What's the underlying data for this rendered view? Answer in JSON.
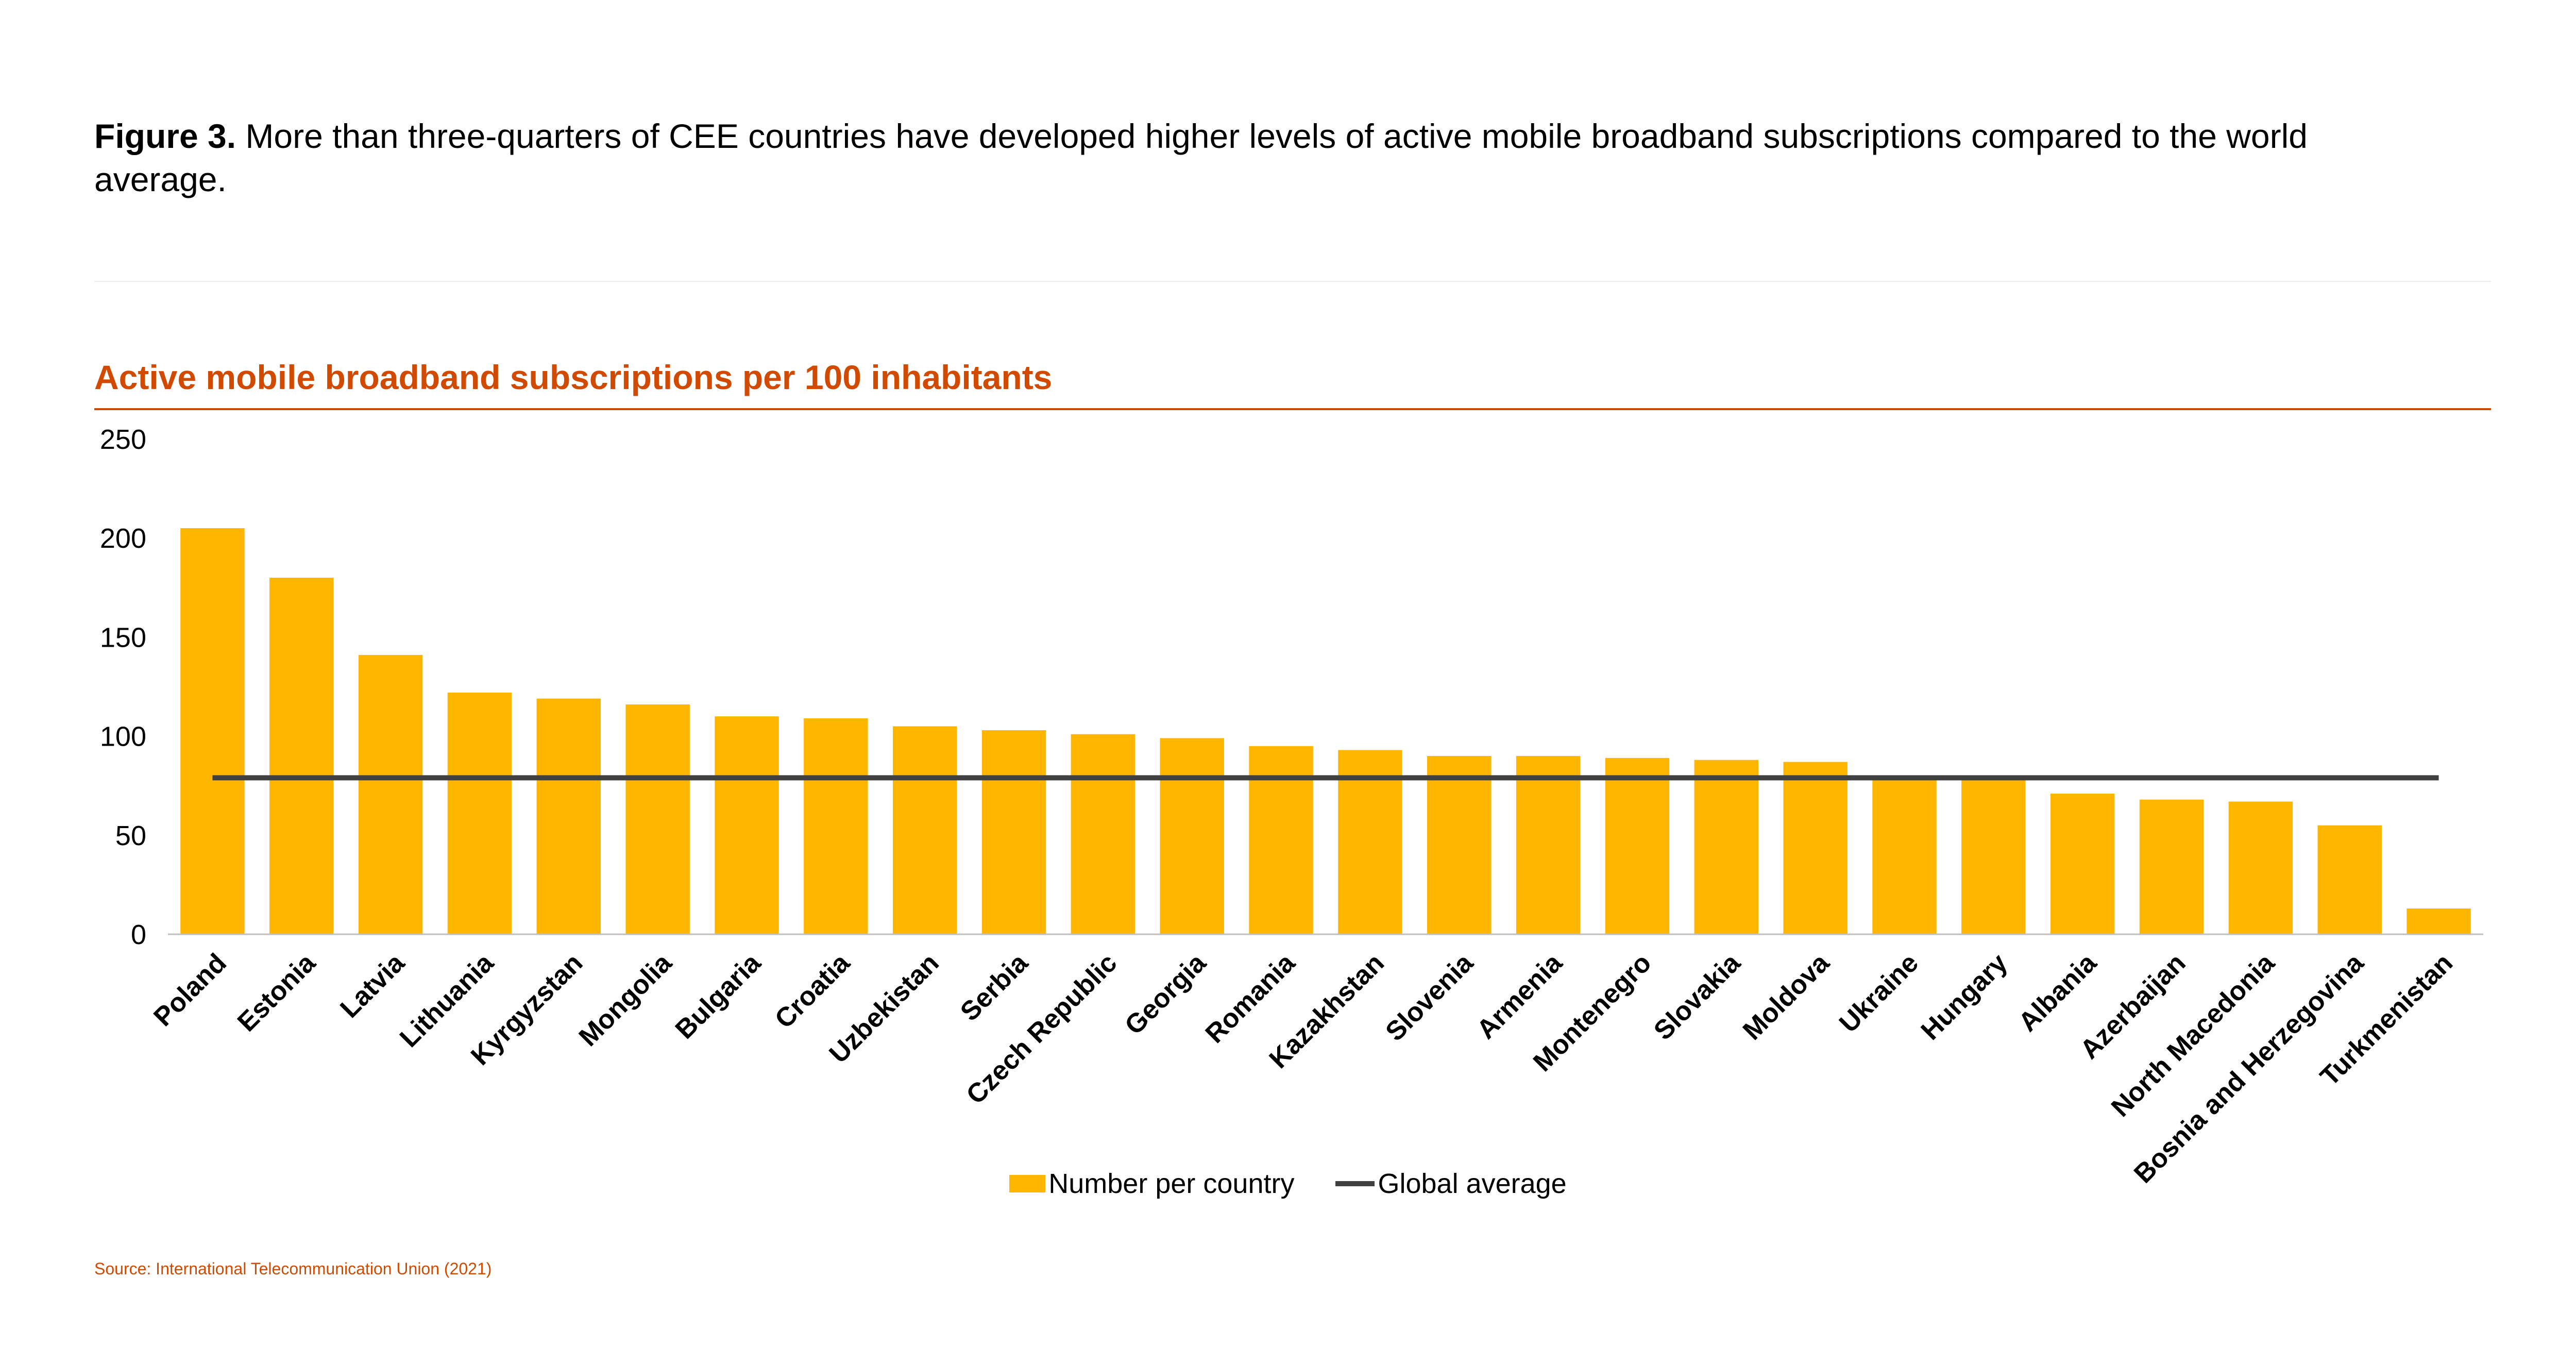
{
  "caption": {
    "label": "Figure 3.",
    "text": " More than three-quarters of CEE countries have developed higher levels of active mobile broadband subscriptions compared to the world average."
  },
  "source": "Source: International Telecommunication Union (2021)",
  "colors": {
    "bar": "#ffb600",
    "average_line": "#404040",
    "accent": "#d04a02"
  },
  "chart_data": {
    "type": "bar",
    "title": "Active mobile broadband subscriptions per 100 inhabitants",
    "xlabel": "",
    "ylabel": "",
    "ylim": [
      0,
      250
    ],
    "yticks": [
      0,
      50,
      100,
      150,
      200,
      250
    ],
    "grid": false,
    "legend_position": "bottom",
    "categories": [
      "Poland",
      "Estonia",
      "Latvia",
      "Lithuania",
      "Kyrgyzstan",
      "Mongolia",
      "Bulgaria",
      "Croatia",
      "Uzbekistan",
      "Serbia",
      "Czech Republic",
      "Georgia",
      "Romania",
      "Kazakhstan",
      "Slovenia",
      "Armenia",
      "Montenegro",
      "Slovakia",
      "Moldova",
      "Ukraine",
      "Hungary",
      "Albania",
      "Azerbaijan",
      "North Macedonia",
      "Bosnia and Herzegovina",
      "Turkmenistan"
    ],
    "series": [
      {
        "name": "Number per country",
        "type": "bar",
        "values": [
          205,
          180,
          141,
          122,
          119,
          116,
          110,
          109,
          105,
          103,
          101,
          99,
          95,
          93,
          90,
          90,
          89,
          88,
          87,
          79,
          79,
          71,
          68,
          67,
          55,
          13
        ]
      },
      {
        "name": "Global average",
        "type": "line",
        "value": 79
      }
    ]
  }
}
